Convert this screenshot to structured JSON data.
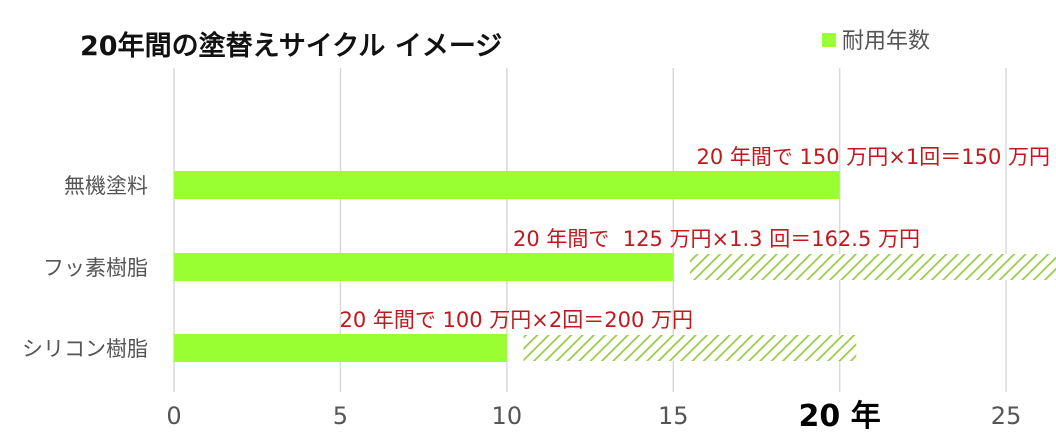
{
  "chart_data": {
    "type": "bar",
    "orientation": "horizontal",
    "title": "20年間の塗替えサイクル イメージ",
    "legend": {
      "label": "耐用年数",
      "position": "top-right"
    },
    "categories": [
      "無機塗料",
      "フッ素樹脂",
      "シリコン樹脂"
    ],
    "series": [
      {
        "name": "耐用年数",
        "values": [
          20,
          15,
          10
        ],
        "style": "solid",
        "color": "#99ff33"
      }
    ],
    "repaint_segments": [
      {
        "category": "フッ素樹脂",
        "start": 15.5,
        "end": 26.5,
        "style": "hatched"
      },
      {
        "category": "シリコン樹脂",
        "start": 10.5,
        "end": 20.5,
        "style": "hatched"
      }
    ],
    "annotations": [
      {
        "category": "無機塗料",
        "text": "20 年間で 150 万円×1回＝150 万円"
      },
      {
        "category": "フッ素樹脂",
        "text": "20 年間で  125 万円×1.3 回＝162.5 万円"
      },
      {
        "category": "シリコン樹脂",
        "text": "20 年間で 100 万円×2回＝200 万円"
      }
    ],
    "xlim": [
      0,
      26.5
    ],
    "xticks": [
      0,
      5,
      10,
      15,
      25
    ],
    "highlighted_tick": {
      "value": 20,
      "label": "20 年"
    },
    "grid": "vertical",
    "colors": {
      "bar": "#99ff33",
      "hatch": "#99cc44",
      "annotation": "#c0191d",
      "grid": "#d9d9d9"
    }
  }
}
